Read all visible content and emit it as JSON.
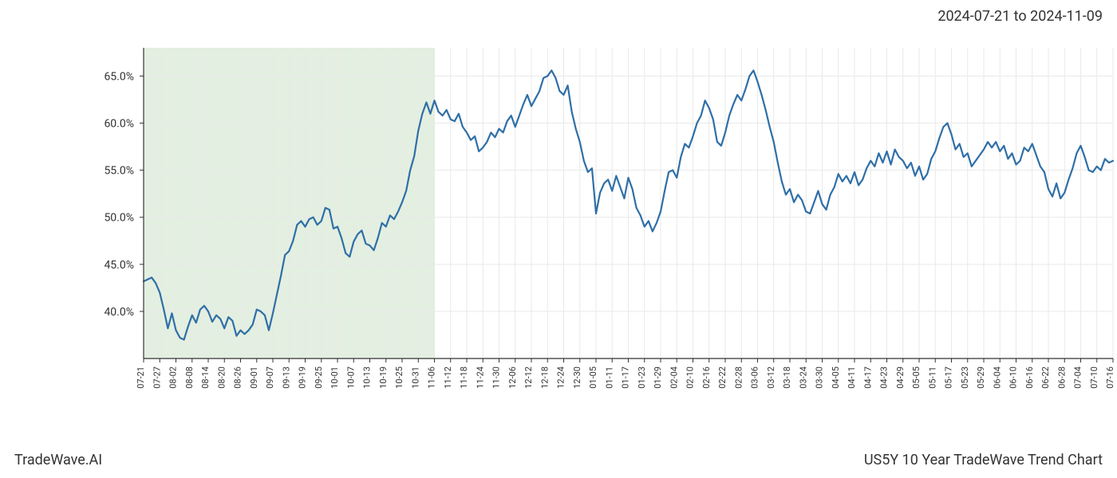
{
  "header": {
    "date_range": "2024-07-21 to 2024-11-09"
  },
  "footer": {
    "brand": "TradeWave.AI",
    "chart_title": "US5Y 10 Year TradeWave Trend Chart"
  },
  "chart": {
    "type": "line",
    "background_color": "#ffffff",
    "plot_border_color": "#333333",
    "grid_color": "#e9e9e9",
    "highlight": {
      "fill": "#d9ead5",
      "opacity": 0.75,
      "x_start": "07-21",
      "x_end": "11-09"
    },
    "line": {
      "color": "#2f6fa7",
      "width": 2.2
    },
    "y_axis": {
      "min": 35.0,
      "max": 68.0,
      "ticks": [
        40.0,
        45.0,
        50.0,
        55.0,
        60.0,
        65.0
      ],
      "tick_labels": [
        "40.0%",
        "45.0%",
        "50.0%",
        "55.0%",
        "60.0%",
        "65.0%"
      ],
      "label_fontsize": 14,
      "label_color": "#333333"
    },
    "x_axis": {
      "labels": [
        "07-21",
        "07-27",
        "08-02",
        "08-08",
        "08-14",
        "08-20",
        "08-26",
        "09-01",
        "09-07",
        "09-13",
        "09-19",
        "09-25",
        "10-01",
        "10-07",
        "10-13",
        "10-19",
        "10-25",
        "10-31",
        "11-06",
        "11-12",
        "11-18",
        "11-24",
        "11-30",
        "12-06",
        "12-12",
        "12-18",
        "12-24",
        "12-30",
        "01-05",
        "01-11",
        "01-17",
        "01-23",
        "01-29",
        "02-04",
        "02-10",
        "02-16",
        "02-22",
        "02-28",
        "03-06",
        "03-12",
        "03-18",
        "03-24",
        "03-30",
        "04-05",
        "04-11",
        "04-17",
        "04-23",
        "04-29",
        "05-05",
        "05-11",
        "05-17",
        "05-23",
        "05-29",
        "06-04",
        "06-10",
        "06-16",
        "06-22",
        "06-28",
        "07-04",
        "07-10",
        "07-16"
      ],
      "label_fontsize": 11,
      "label_color": "#333333",
      "rotation": -90
    },
    "series": {
      "name": "US5Y",
      "values": [
        43.2,
        43.4,
        43.6,
        43.0,
        42.0,
        40.2,
        38.2,
        39.8,
        38.0,
        37.2,
        37.0,
        38.4,
        39.6,
        38.8,
        40.2,
        40.6,
        40.0,
        38.9,
        39.6,
        39.2,
        38.2,
        39.4,
        39.0,
        37.4,
        38.0,
        37.6,
        38.0,
        38.6,
        40.2,
        40.0,
        39.6,
        38.0,
        39.8,
        41.8,
        43.8,
        46.0,
        46.4,
        47.5,
        49.2,
        49.6,
        49.0,
        49.8,
        50.0,
        49.2,
        49.6,
        51.0,
        50.8,
        48.8,
        49.0,
        47.8,
        46.2,
        45.8,
        47.4,
        48.2,
        48.6,
        47.2,
        47.0,
        46.5,
        47.8,
        49.4,
        49.0,
        50.2,
        49.8,
        50.6,
        51.6,
        52.8,
        55.0,
        56.5,
        59.2,
        61.0,
        62.2,
        61.0,
        62.4,
        61.2,
        60.8,
        61.4,
        60.4,
        60.2,
        61.0,
        59.6,
        59.0,
        58.2,
        58.6,
        57.0,
        57.4,
        58.0,
        59.0,
        58.5,
        59.4,
        59.0,
        60.2,
        60.8,
        59.6,
        60.8,
        62.0,
        63.0,
        61.8,
        62.6,
        63.4,
        64.8,
        65.0,
        65.6,
        64.8,
        63.4,
        63.0,
        64.0,
        61.2,
        59.4,
        58.0,
        56.0,
        54.8,
        55.2,
        50.4,
        52.6,
        53.6,
        54.0,
        52.8,
        54.4,
        53.2,
        52.0,
        54.2,
        53.0,
        51.0,
        50.2,
        49.0,
        49.6,
        48.5,
        49.4,
        50.6,
        52.8,
        54.8,
        55.0,
        54.2,
        56.4,
        57.8,
        57.4,
        58.6,
        60.0,
        60.8,
        62.4,
        61.6,
        60.4,
        58.0,
        57.6,
        59.0,
        60.8,
        62.0,
        63.0,
        62.4,
        63.6,
        65.0,
        65.6,
        64.4,
        63.0,
        61.4,
        59.6,
        58.0,
        55.8,
        53.8,
        52.4,
        53.0,
        51.6,
        52.4,
        51.8,
        50.6,
        50.4,
        51.6,
        52.8,
        51.4,
        50.8,
        52.4,
        53.2,
        54.6,
        53.8,
        54.4,
        53.6,
        54.8,
        53.4,
        54.0,
        55.2,
        56.0,
        55.4,
        56.8,
        55.8,
        57.0,
        55.6,
        57.2,
        56.4,
        56.0,
        55.2,
        55.8,
        54.4,
        55.4,
        54.0,
        54.6,
        56.2,
        57.0,
        58.4,
        59.6,
        60.0,
        58.8,
        57.2,
        57.8,
        56.4,
        56.8,
        55.4,
        56.0,
        56.6,
        57.2,
        58.0,
        57.4,
        58.0,
        57.0,
        57.6,
        56.2,
        56.8,
        55.6,
        56.0,
        57.4,
        57.0,
        57.8,
        56.6,
        55.4,
        54.8,
        53.0,
        52.2,
        53.6,
        52.0,
        52.6,
        54.0,
        55.2,
        56.8,
        57.6,
        56.4,
        55.0,
        54.8,
        55.4,
        55.0,
        56.2,
        55.8,
        56.0
      ]
    }
  }
}
